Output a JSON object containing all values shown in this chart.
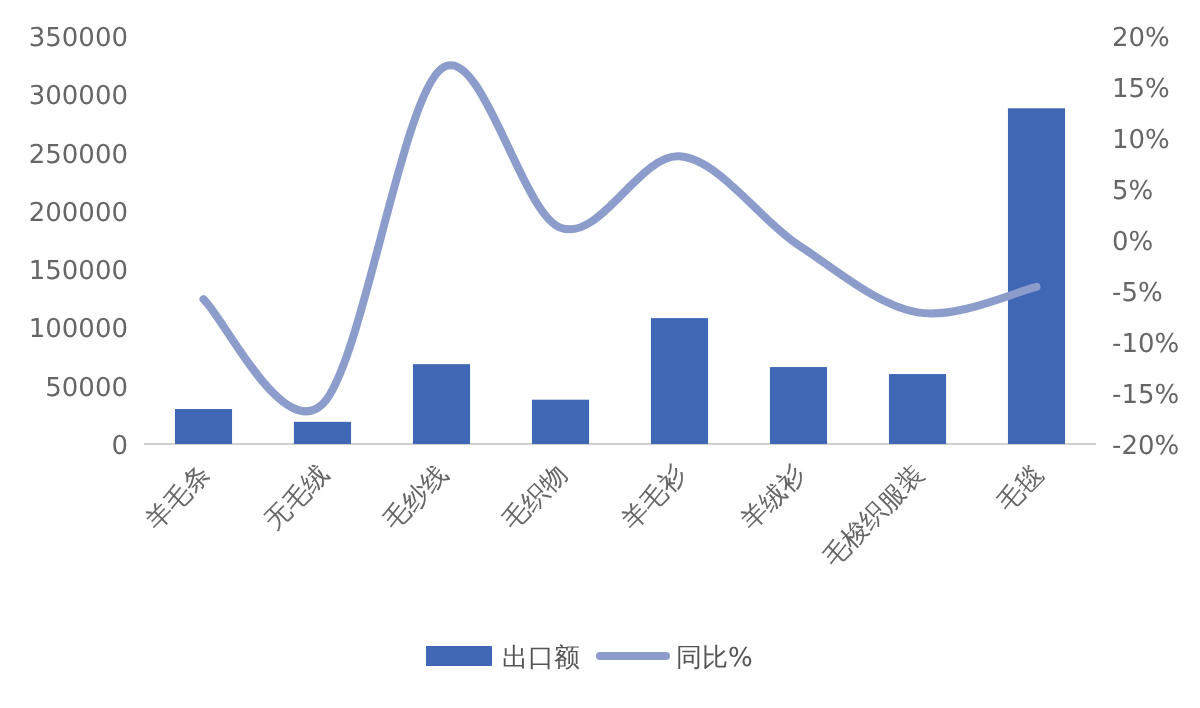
{
  "chart_data": {
    "type": "bar",
    "categories": [
      "羊毛条",
      "无毛绒",
      "毛纱线",
      "毛织物",
      "羊毛衫",
      "羊绒衫",
      "毛梭织服装",
      "毛毯"
    ],
    "series": [
      {
        "name": "出口额",
        "color": "#3f67b5",
        "values": [
          30000,
          19000,
          68500,
          38000,
          108000,
          66000,
          60000,
          288000
        ]
      },
      {
        "name": "同比%",
        "type": "line",
        "axis": "y2",
        "color": "#8c9dcc",
        "values": [
          -5.8,
          -16.1,
          16.8,
          1.2,
          8.2,
          -0.5,
          -7.1,
          -4.6
        ]
      }
    ],
    "ylim": [
      0,
      350000
    ],
    "yticks": [
      0,
      50000,
      100000,
      150000,
      200000,
      250000,
      300000,
      350000
    ],
    "y2lim": [
      -20,
      20
    ],
    "y2ticks": [
      {
        "value": -20,
        "label": "-20%"
      },
      {
        "value": -15,
        "label": "-15%"
      },
      {
        "value": -10,
        "label": "-10%"
      },
      {
        "value": -5,
        "label": "-5%"
      },
      {
        "value": 0,
        "label": "0%"
      },
      {
        "value": 5,
        "label": "5%"
      },
      {
        "value": 10,
        "label": "10%"
      },
      {
        "value": 15,
        "label": "15%"
      },
      {
        "value": 20,
        "label": "20%"
      }
    ],
    "legend": "bottom"
  }
}
